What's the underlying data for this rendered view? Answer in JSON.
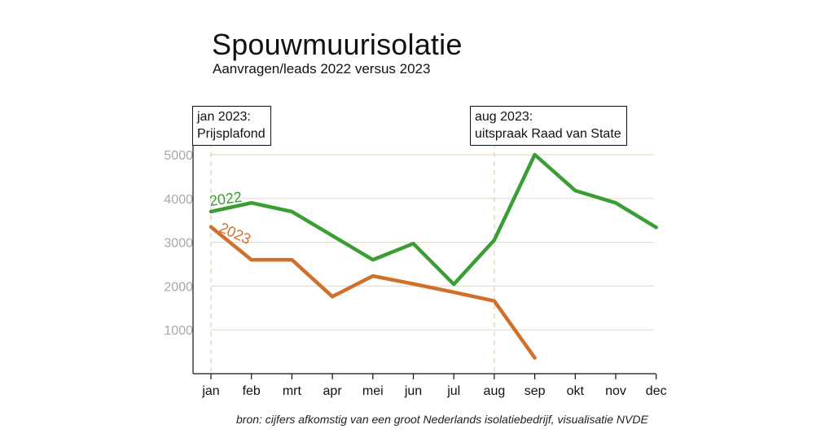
{
  "title": "Spouwmuurisolatie",
  "subtitle": "Aanvragen/leads 2022 versus 2023",
  "annotations": [
    {
      "lines": [
        "jan 2023:",
        "Prijsplafond"
      ],
      "at": "jan"
    },
    {
      "lines": [
        "aug 2023:",
        "uitspraak Raad van State"
      ],
      "at": "aug"
    }
  ],
  "source": "bron: cijfers afkomstig van een groot Nederlands isolatiebedrijf, visualisatie NVDE",
  "chart_data": {
    "type": "line",
    "title": "Spouwmuurisolatie",
    "subtitle": "Aanvragen/leads 2022 versus 2023",
    "categories": [
      "jan",
      "feb",
      "mrt",
      "apr",
      "mei",
      "jun",
      "jul",
      "aug",
      "sep",
      "okt",
      "nov",
      "dec"
    ],
    "ylim": [
      0,
      5000
    ],
    "yticks": [
      1000,
      2000,
      3000,
      4000,
      5000
    ],
    "grid": "horizontal",
    "series": [
      {
        "name": "2022",
        "color": "#3a9e35",
        "values": [
          3700,
          3900,
          3700,
          3150,
          2600,
          2970,
          2040,
          3050,
          5000,
          4180,
          3900,
          3340
        ]
      },
      {
        "name": "2023",
        "color": "#d0702a",
        "values": [
          3350,
          2600,
          2600,
          1760,
          2230,
          2050,
          1860,
          1660,
          360,
          null,
          null,
          null
        ]
      }
    ],
    "vlines": [
      "jan",
      "aug"
    ]
  }
}
